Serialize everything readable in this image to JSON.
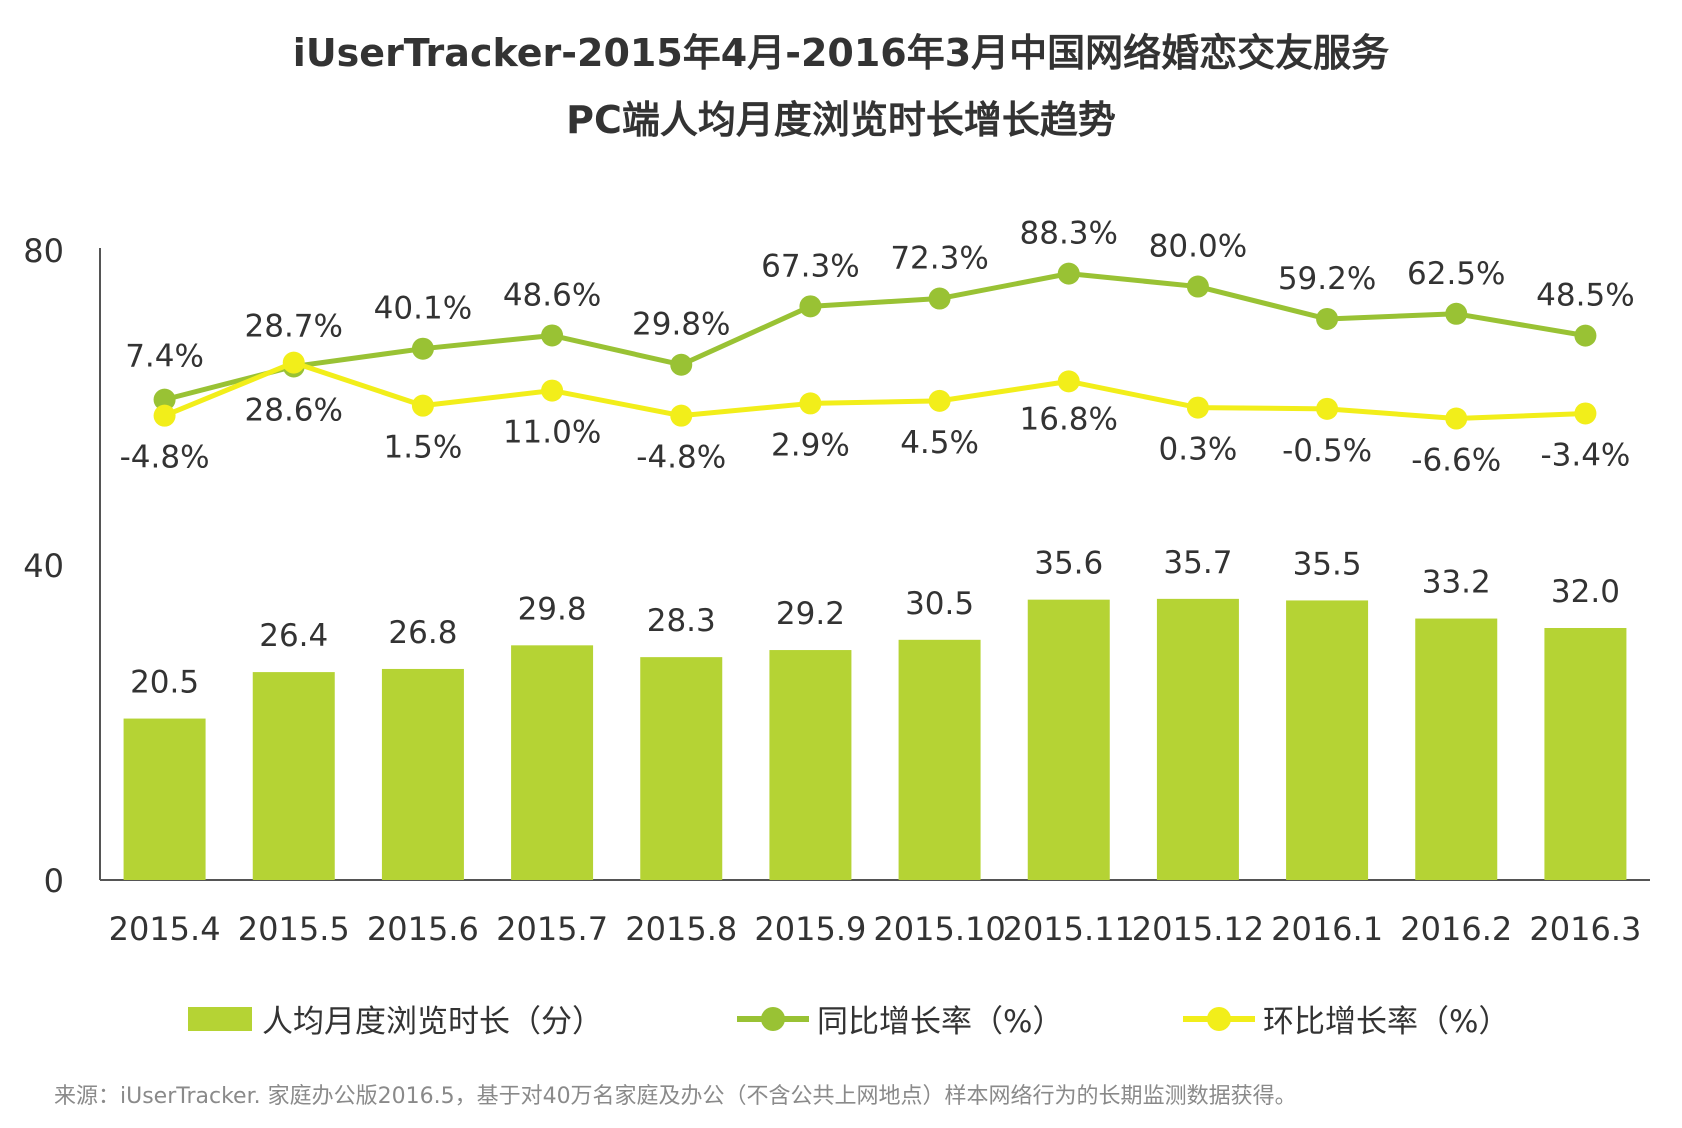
{
  "title": {
    "line1": "iUserTracker-2015年4月-2016年3月中国网络婚恋交友服务",
    "line2": "PC端人均月度浏览时长增长趋势"
  },
  "source": "来源：iUserTracker. 家庭办公版2016.5，基于对40万名家庭及办公（不含公共上网地点）样本网络行为的长期监测数据获得。",
  "colors": {
    "bar": "#b5d334",
    "yoy": "#99c234",
    "mom": "#f2ee1a",
    "axis": "#555555",
    "text": "#333333"
  },
  "chart_data": {
    "type": "bar",
    "title": "iUserTracker-2015年4月-2016年3月中国网络婚恋交友服务 PC端人均月度浏览时长增长趋势",
    "categories": [
      "2015.4",
      "2015.5",
      "2015.6",
      "2015.7",
      "2015.8",
      "2015.9",
      "2015.10",
      "2015.11",
      "2015.12",
      "2016.1",
      "2016.2",
      "2016.3"
    ],
    "y_ticks": [
      "0",
      "40",
      "80"
    ],
    "ylim": [
      0,
      80
    ],
    "series": [
      {
        "name": "人均月度浏览时长（分）",
        "type": "bar",
        "values": [
          20.5,
          26.4,
          26.8,
          29.8,
          28.3,
          29.2,
          30.5,
          35.6,
          35.7,
          35.5,
          33.2,
          32.0
        ],
        "labels": [
          "20.5",
          "26.4",
          "26.8",
          "29.8",
          "28.3",
          "29.2",
          "30.5",
          "35.6",
          "35.7",
          "35.5",
          "33.2",
          "32.0"
        ]
      },
      {
        "name": "同比增长率（%）",
        "type": "line",
        "values": [
          7.4,
          28.7,
          40.1,
          48.6,
          29.8,
          67.3,
          72.3,
          88.3,
          80.0,
          59.2,
          62.5,
          48.5
        ],
        "labels": [
          "7.4%",
          "28.7%",
          "40.1%",
          "48.6%",
          "29.8%",
          "67.3%",
          "72.3%",
          "88.3%",
          "80.0%",
          "59.2%",
          "62.5%",
          "48.5%"
        ],
        "plot_min": 7.4,
        "plot_max": 88.3,
        "plot_y_at_min": 61.0,
        "plot_y_at_max": 77.0
      },
      {
        "name": "环比增长率（%）",
        "type": "line",
        "values": [
          -4.8,
          28.6,
          1.5,
          11.0,
          -4.8,
          2.9,
          4.5,
          16.8,
          0.3,
          -0.5,
          -6.6,
          -3.4
        ],
        "labels": [
          "-4.8%",
          "28.6%",
          "1.5%",
          "11.0%",
          "-4.8%",
          "2.9%",
          "4.5%",
          "16.8%",
          "0.3%",
          "-0.5%",
          "-6.6%",
          "-3.4%"
        ],
        "plot_min": -6.6,
        "plot_max": 28.6,
        "plot_y_at_min": 58.6,
        "plot_y_at_max": 65.7
      }
    ],
    "legend": [
      "人均月度浏览时长（分）",
      "同比增长率（%）",
      "环比增长率（%）"
    ],
    "legend_position": "bottom"
  }
}
